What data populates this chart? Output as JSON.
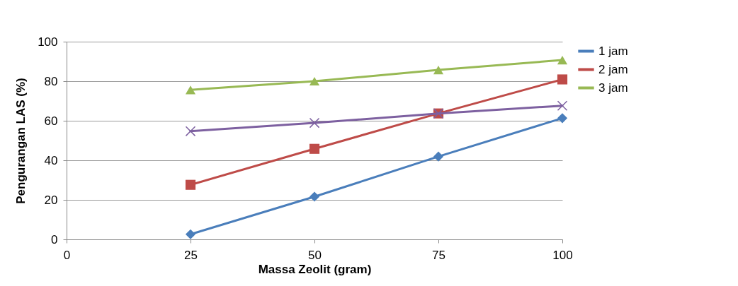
{
  "chart_data": {
    "type": "line",
    "xlabel": "Massa Zeolit (gram)",
    "ylabel": "Pengurangan LAS (%)",
    "x": [
      25,
      50,
      75,
      100
    ],
    "xlim": [
      0,
      100
    ],
    "xticks": [
      0,
      25,
      50,
      75,
      100
    ],
    "ylim": [
      0,
      100
    ],
    "yticks": [
      0,
      20,
      40,
      60,
      80,
      100
    ],
    "grid": "y",
    "legend": "right",
    "series": [
      {
        "name": "1 jam",
        "color": "#4a7ebb",
        "marker": "diamond",
        "values": [
          2.6,
          21.6,
          41.9,
          61.3
        ]
      },
      {
        "name": "2 jam",
        "color": "#be4b48",
        "marker": "square",
        "values": [
          27.6,
          45.8,
          63.7,
          80.9
        ]
      },
      {
        "name": "3 jam",
        "color": "#98b954",
        "marker": "triangle",
        "values": [
          75.6,
          80,
          85.7,
          90.7
        ]
      },
      {
        "color": "#7d60a0",
        "marker": "cross",
        "values": [
          54.7,
          58.9,
          63.7,
          67.6
        ]
      }
    ]
  }
}
